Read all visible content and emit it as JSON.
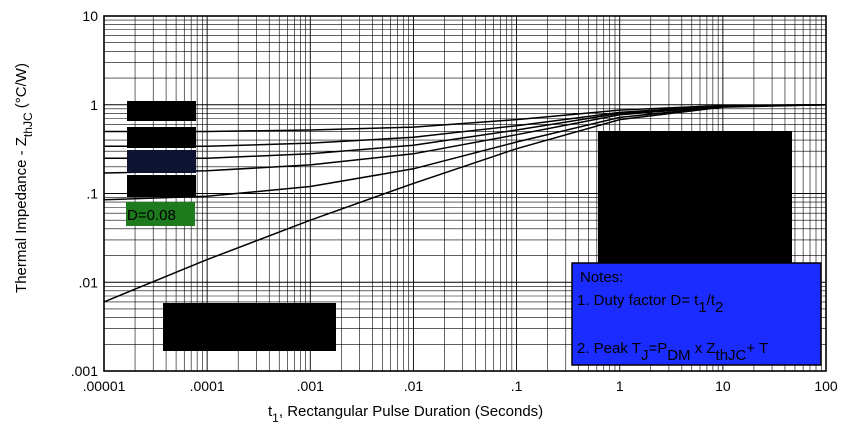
{
  "chart_data": {
    "type": "line",
    "xscale": "log",
    "yscale": "log",
    "xlim": [
      1e-05,
      100
    ],
    "ylim": [
      0.001,
      10
    ],
    "xticks": [
      ".00001",
      ".0001",
      ".001",
      ".01",
      ".1",
      "1",
      "10",
      "100"
    ],
    "yticks": [
      ".001",
      ".01",
      ".1",
      "1",
      "10"
    ],
    "xlabel_main": "t",
    "xlabel_sub": "1",
    "xlabel_rest": ",  Rectangular Pulse Duration (Seconds)",
    "ylabel_main": "Thermal Impedance - Z",
    "ylabel_sub": "thJC",
    "ylabel_unit": " (°C/W)",
    "grid": true,
    "series": [
      {
        "x": [
          1e-05,
          0.0001,
          0.001,
          0.01,
          0.1,
          1,
          10,
          100
        ],
        "y": [
          0.5,
          0.5,
          0.52,
          0.56,
          0.68,
          0.87,
          0.98,
          1.0
        ]
      },
      {
        "x": [
          1e-05,
          0.0001,
          0.001,
          0.01,
          0.1,
          1,
          10,
          100
        ],
        "y": [
          0.34,
          0.34,
          0.37,
          0.43,
          0.58,
          0.82,
          0.97,
          1.0
        ]
      },
      {
        "x": [
          1e-05,
          0.0001,
          0.001,
          0.01,
          0.1,
          1,
          10,
          100
        ],
        "y": [
          0.25,
          0.25,
          0.28,
          0.35,
          0.52,
          0.8,
          0.97,
          1.0
        ]
      },
      {
        "x": [
          1e-05,
          0.0001,
          0.001,
          0.01,
          0.1,
          1,
          10,
          100
        ],
        "y": [
          0.17,
          0.18,
          0.21,
          0.28,
          0.46,
          0.77,
          0.96,
          1.0
        ]
      },
      {
        "x": [
          1e-05,
          0.0001,
          0.001,
          0.01,
          0.1,
          1,
          10,
          100
        ],
        "y": [
          0.085,
          0.093,
          0.12,
          0.19,
          0.38,
          0.72,
          0.95,
          1.0
        ]
      },
      {
        "x": [
          1e-05,
          0.0001,
          0.001,
          0.01,
          0.1,
          1,
          10,
          100
        ],
        "y": [
          0.006,
          0.018,
          0.05,
          0.13,
          0.32,
          0.68,
          0.94,
          1.0
        ]
      }
    ],
    "annotations": {
      "d_label": "D=0.08",
      "notes_title": "Notes:",
      "note1_prefix": "1. Duty factor D= t",
      "note1_sub1": "1",
      "note1_mid": "/t",
      "note1_sub2": "2",
      "note2_prefix": "2. Peak T",
      "note2_sub_j": "J",
      "note2_eq": "=P",
      "note2_sub_dm": "DM",
      "note2_x": " x Z",
      "note2_sub_thjc": "thJC",
      "note2_plus": "+ T"
    },
    "colors": {
      "line": "#000000",
      "grid": "#000000",
      "notes_box": "#1a2cff",
      "d_box": "#1d7a1d",
      "blackout": "#000000",
      "navy": "#0f1433"
    }
  }
}
